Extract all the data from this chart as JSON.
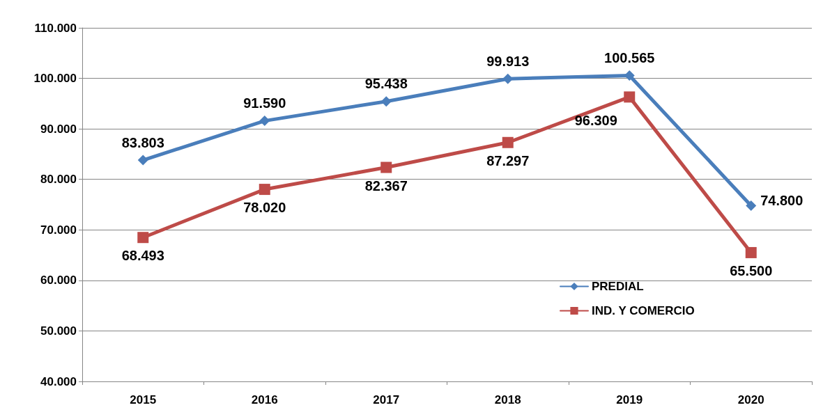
{
  "chart_data": {
    "type": "line",
    "categories": [
      "2015",
      "2016",
      "2017",
      "2018",
      "2019",
      "2020"
    ],
    "series": [
      {
        "name": "PREDIAL",
        "color": "#4a7ebb",
        "marker": "diamond",
        "values": [
          83803,
          91590,
          95438,
          99913,
          100565,
          74800
        ],
        "value_labels": [
          "83.803",
          "91.590",
          "95.438",
          "99.913",
          "100.565",
          "74.800"
        ]
      },
      {
        "name": "IND. Y COMERCIO",
        "color": "#be4b48",
        "marker": "square",
        "values": [
          68493,
          78020,
          82367,
          87297,
          96309,
          65500
        ],
        "value_labels": [
          "68.493",
          "78.020",
          "82.367",
          "87.297",
          "96.309",
          "65.500"
        ]
      }
    ],
    "ylim": [
      40000,
      110000
    ],
    "yticks": [
      {
        "value": 40000,
        "label": "40.000"
      },
      {
        "value": 50000,
        "label": "50.000"
      },
      {
        "value": 60000,
        "label": "60.000"
      },
      {
        "value": 70000,
        "label": "70.000"
      },
      {
        "value": 80000,
        "label": "80.000"
      },
      {
        "value": 90000,
        "label": "90.000"
      },
      {
        "value": 100000,
        "label": "100.000"
      },
      {
        "value": 110000,
        "label": "110.000"
      }
    ],
    "grid": "y",
    "legend": "right"
  }
}
